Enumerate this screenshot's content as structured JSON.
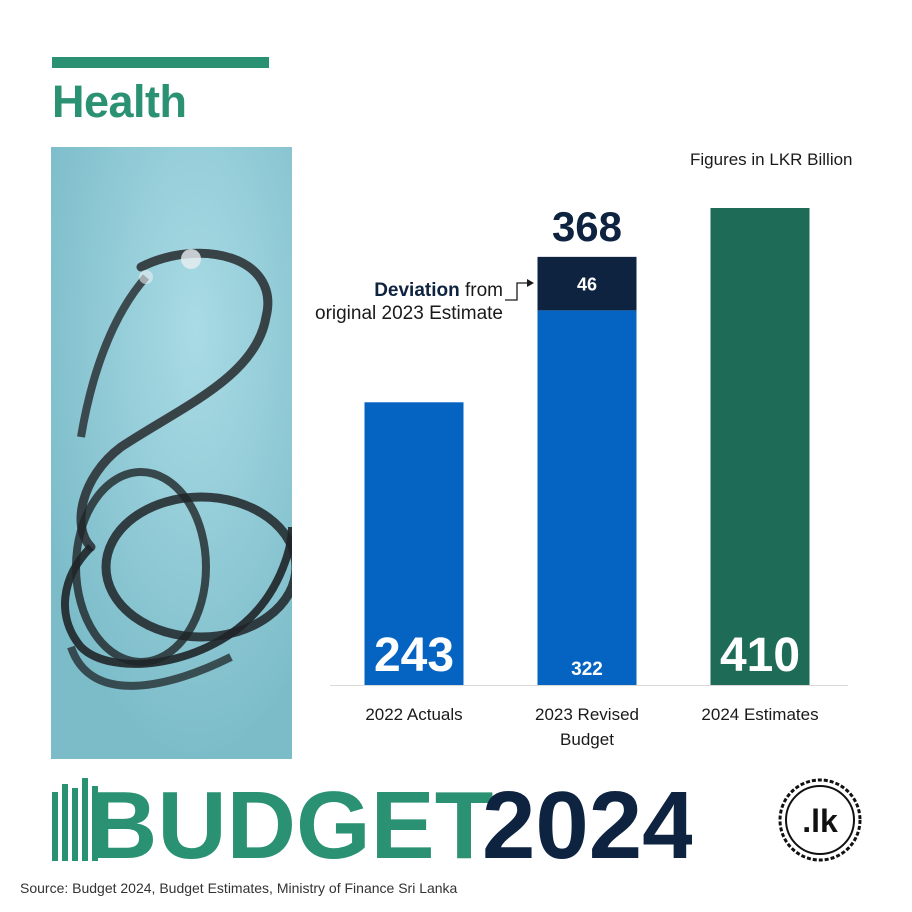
{
  "header": {
    "title": "Health"
  },
  "units_note": "Figures in LKR Billion",
  "chart_data": {
    "type": "bar",
    "stacked": true,
    "categories": [
      "2022 Actuals",
      "2023 Revised\nBudget",
      "2024 Estimates"
    ],
    "series": [
      {
        "values": [
          243,
          322,
          410
        ],
        "colors": [
          "#0563c1",
          "#0563c1",
          "#1e6b58"
        ]
      },
      {
        "values": [
          0,
          46,
          0
        ],
        "color": "#0d2340"
      }
    ],
    "totals": [
      "",
      "368",
      ""
    ],
    "data_labels": [
      [
        "243",
        "322",
        "410"
      ],
      [
        "",
        "46",
        ""
      ]
    ],
    "annotation": {
      "bold": "Deviation",
      "rest_line1": " from",
      "line2": "original 2023 Estimate"
    },
    "ylim": [
      0,
      410
    ]
  },
  "brand": {
    "word": "BUDGET",
    "year": "2024",
    "seal_text": ".lk"
  },
  "source": "Source: Budget 2024, Budget Estimates, Ministry of Finance Sri Lanka"
}
